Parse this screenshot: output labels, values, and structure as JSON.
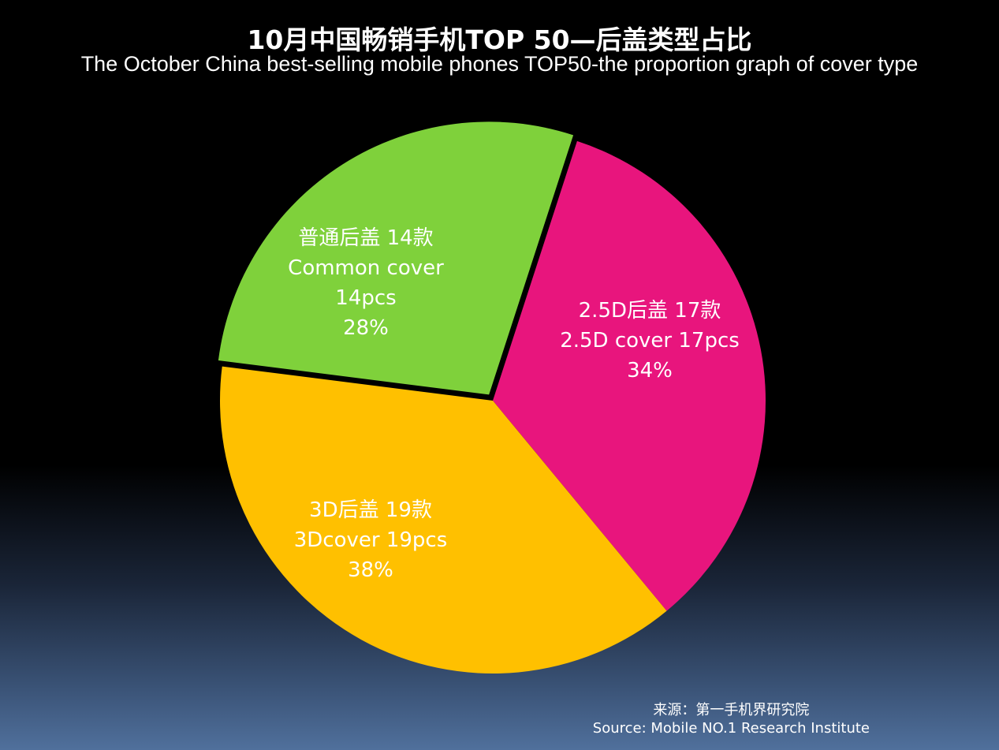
{
  "chart_data": {
    "type": "pie",
    "title": "10月中国畅销手机TOP 50—后盖类型占比",
    "subtitle": "The October China best-selling mobile phones TOP50-the proportion graph of  cover type",
    "slices": [
      {
        "key": "2.5d",
        "value": 17,
        "percent": "34%",
        "color": "#e8157d",
        "label_lines": [
          "2.5D后盖 17款",
          "2.5D cover 17pcs",
          "34%"
        ]
      },
      {
        "key": "3d",
        "value": 19,
        "percent": "38%",
        "color": "#ffc000",
        "label_lines": [
          "3D后盖 19款",
          "3Dcover 19pcs",
          "38%"
        ]
      },
      {
        "key": "common",
        "value": 14,
        "percent": "28%",
        "color": "#7fd13b",
        "label_lines": [
          "普通后盖 14款",
          "Common  cover",
          "14pcs",
          "28%"
        ],
        "exploded": true
      }
    ],
    "legend": "none"
  },
  "source": {
    "line1": "来源：第一手机界研究院",
    "line2": "Source: Mobile NO.1 Research Institute"
  }
}
